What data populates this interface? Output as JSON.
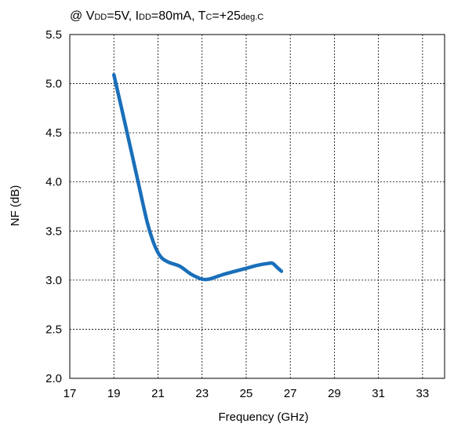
{
  "chart_data": {
    "type": "line",
    "title_parts": [
      {
        "text": "@ V",
        "sub": false
      },
      {
        "text": "DD",
        "sub": true
      },
      {
        "text": "=5V, I",
        "sub": false
      },
      {
        "text": "DD",
        "sub": true
      },
      {
        "text": "=80mA, T",
        "sub": false
      },
      {
        "text": "C",
        "sub": true
      },
      {
        "text": "=+25",
        "sub": false
      },
      {
        "text": "deg.C",
        "sub": true
      }
    ],
    "xlabel": "Frequency (GHz)",
    "ylabel": "NF (dB)",
    "xlim": [
      17,
      34
    ],
    "ylim": [
      2.0,
      5.5
    ],
    "xticks": [
      17,
      19,
      21,
      23,
      25,
      27,
      29,
      31,
      33
    ],
    "xtick_labels": [
      "17",
      "19",
      "21",
      "23",
      "25",
      "27",
      "29",
      "31",
      "33"
    ],
    "yticks": [
      2.0,
      2.5,
      3.0,
      3.5,
      4.0,
      4.5,
      5.0,
      5.5
    ],
    "ytick_labels": [
      "2.0",
      "2.5",
      "3.0",
      "3.5",
      "4.0",
      "4.5",
      "5.0",
      "5.5"
    ],
    "grid": true,
    "line_color": "#1a6fba",
    "series": [
      {
        "x": [
          19.0,
          19.5,
          20.0,
          20.5,
          20.8,
          21.0,
          21.2,
          21.5,
          22.0,
          22.5,
          23.0,
          23.3,
          23.6,
          24.0,
          24.5,
          25.0,
          25.5,
          26.0,
          26.2,
          26.4,
          26.6
        ],
        "y": [
          5.09,
          4.6,
          4.1,
          3.6,
          3.38,
          3.28,
          3.22,
          3.18,
          3.14,
          3.06,
          3.01,
          3.01,
          3.03,
          3.06,
          3.09,
          3.12,
          3.15,
          3.17,
          3.17,
          3.13,
          3.09
        ]
      }
    ]
  }
}
